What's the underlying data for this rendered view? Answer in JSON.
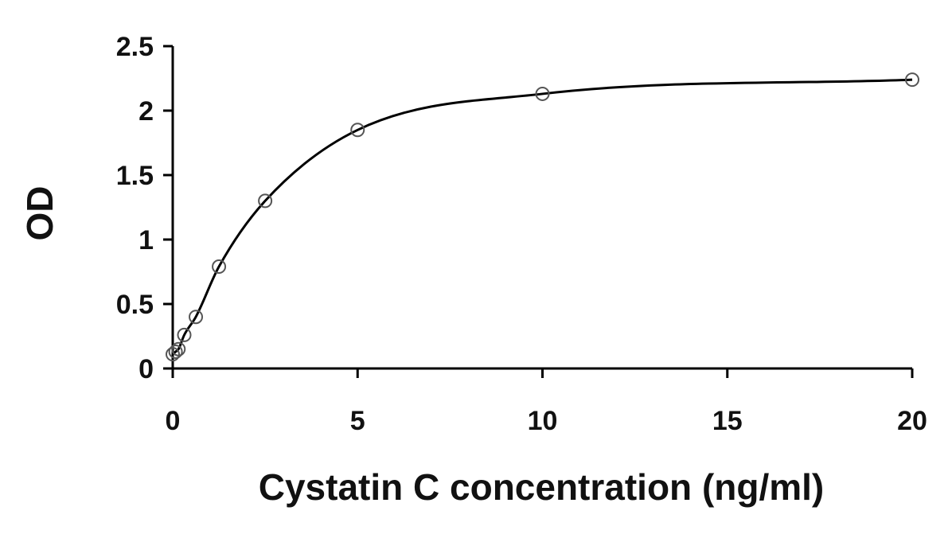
{
  "chart_data": {
    "type": "scatter",
    "title": "",
    "xlabel": "Cystatin C concentration (ng/ml)",
    "ylabel": "OD",
    "xlim": [
      0,
      20
    ],
    "ylim": [
      0,
      2.5
    ],
    "x_ticks": [
      "0",
      "5",
      "10",
      "15",
      "20"
    ],
    "y_ticks": [
      "0",
      "0.5",
      "1",
      "1.5",
      "2",
      "2.5"
    ],
    "grid": false,
    "legend": "none",
    "fit": "smooth curve",
    "series": [
      {
        "x": [
          0,
          0.078,
          0.156,
          0.312,
          0.625,
          1.25,
          2.5,
          5,
          10,
          20
        ],
        "y": [
          0.11,
          0.13,
          0.15,
          0.26,
          0.4,
          0.79,
          1.3,
          1.85,
          2.13,
          2.24
        ]
      }
    ],
    "colors": {
      "line": "#000000",
      "marker": "#555555"
    }
  }
}
